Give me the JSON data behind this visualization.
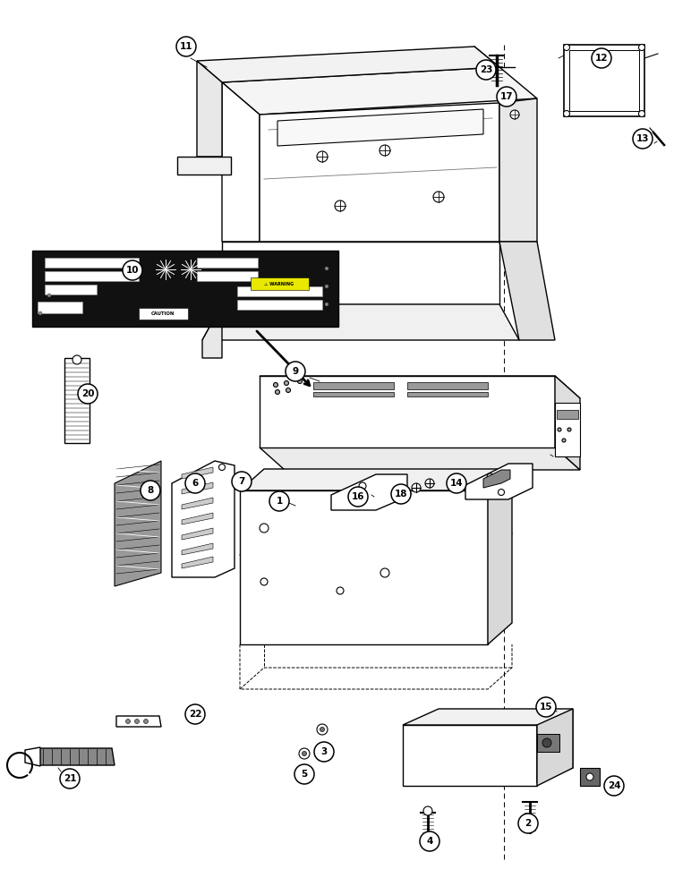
{
  "bg": "#ffffff",
  "lc": "#000000",
  "figsize": [
    7.72,
    10.0
  ],
  "dpi": 100,
  "labels": [
    [
      "11",
      208,
      52
    ],
    [
      "23",
      543,
      78
    ],
    [
      "17",
      566,
      108
    ],
    [
      "12",
      672,
      65
    ],
    [
      "13",
      718,
      155
    ],
    [
      "10",
      148,
      302
    ],
    [
      "9",
      330,
      415
    ],
    [
      "20",
      98,
      440
    ],
    [
      "8",
      168,
      548
    ],
    [
      "6",
      218,
      540
    ],
    [
      "7",
      270,
      538
    ],
    [
      "1",
      312,
      560
    ],
    [
      "16",
      400,
      555
    ],
    [
      "18",
      448,
      552
    ],
    [
      "14",
      510,
      540
    ],
    [
      "15",
      610,
      790
    ],
    [
      "21",
      78,
      870
    ],
    [
      "22",
      218,
      798
    ],
    [
      "3",
      362,
      840
    ],
    [
      "5",
      340,
      865
    ],
    [
      "2",
      590,
      920
    ],
    [
      "4",
      480,
      940
    ],
    [
      "24",
      686,
      878
    ]
  ]
}
